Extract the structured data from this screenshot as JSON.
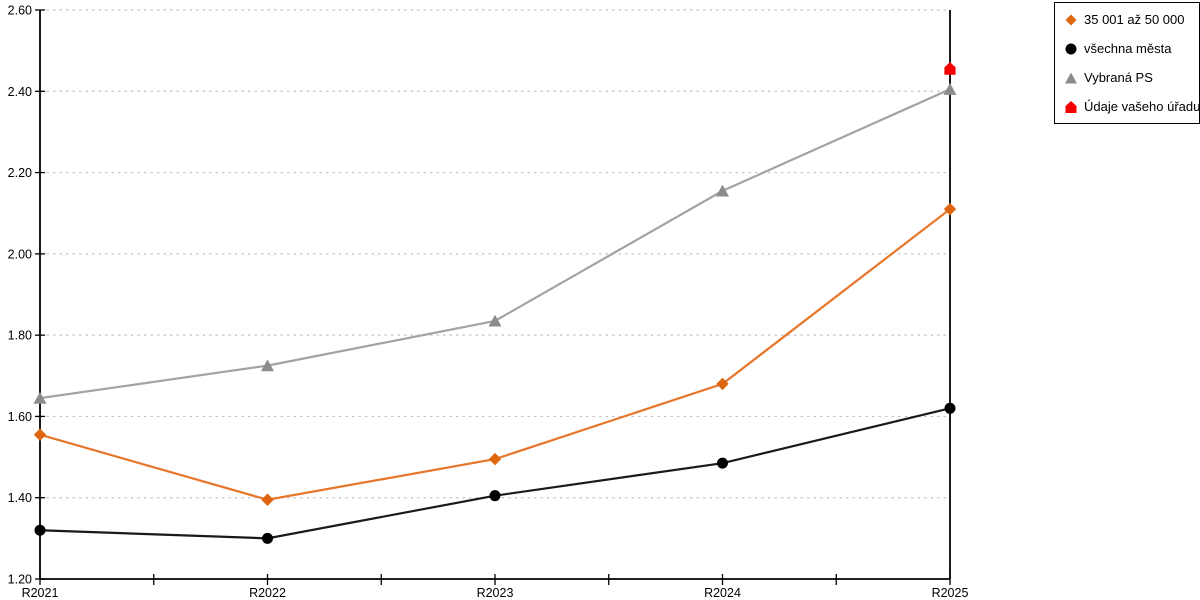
{
  "chart_data": {
    "type": "line",
    "title": "",
    "xlabel": "",
    "ylabel": "",
    "x": [
      "R2021",
      "R2022",
      "R2023",
      "R2024",
      "R2025"
    ],
    "series": [
      {
        "name": "35 001 až 50 000",
        "marker": "diamond",
        "color": "#E8762A",
        "marker_color": "#DD660E",
        "values": [
          1.555,
          1.395,
          1.495,
          1.68,
          2.11
        ]
      },
      {
        "name": "všechna města",
        "marker": "circle",
        "color": "#1A1A1A",
        "marker_color": "#000000",
        "values": [
          1.32,
          1.3,
          1.405,
          1.485,
          1.62
        ]
      },
      {
        "name": "Vybraná PS",
        "marker": "triangle",
        "color": "#A3A3A3",
        "marker_color": "#8C8C8C",
        "values": [
          1.645,
          1.725,
          1.835,
          2.155,
          2.405
        ]
      },
      {
        "name": "Údaje vašeho úřadu",
        "marker": "pentagon",
        "color": "#F40000",
        "marker_color": "#F40000",
        "values": [
          null,
          null,
          null,
          null,
          2.455
        ]
      }
    ],
    "ylim": [
      1.2,
      2.6
    ],
    "ytick_step": 0.2,
    "ytick_labels": [
      "1.20",
      "1.40",
      "1.60",
      "1.80",
      "2.00",
      "2.20",
      "2.40",
      "2.60"
    ],
    "grid": "horizontal-dotted",
    "grid_color": "#C4C4C4",
    "axis_color": "#000000",
    "legend_position": "top-right"
  }
}
